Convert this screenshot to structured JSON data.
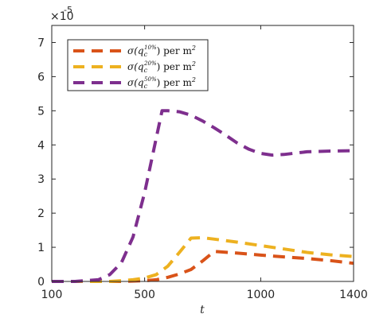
{
  "chart_data": {
    "type": "line",
    "title": "",
    "xlabel": "t",
    "ylabel": "",
    "xlim": [
      100,
      1400
    ],
    "ylim": [
      0,
      7.5
    ],
    "y_multiplier_label": "×10",
    "y_multiplier_exponent": "-5",
    "xticks": [
      100,
      500,
      1000,
      1400
    ],
    "yticks": [
      0,
      1,
      2,
      3,
      4,
      5,
      6,
      7
    ],
    "grid": false,
    "legend_position": "top-left",
    "series": [
      {
        "name": "σ(q_c^{10%}) per m²",
        "name_main": "σ(q",
        "name_sub": "c",
        "name_sup": "10%",
        "name_tail": ") per m",
        "name_pow": "2",
        "color": "#D95319",
        "x": [
          100,
          200,
          300,
          400,
          500,
          550,
          600,
          650,
          700,
          750,
          800,
          900,
          1000,
          1100,
          1200,
          1300,
          1400
        ],
        "y": [
          0,
          0,
          0,
          0,
          0.02,
          0.05,
          0.12,
          0.22,
          0.35,
          0.6,
          0.88,
          0.83,
          0.77,
          0.72,
          0.67,
          0.61,
          0.53
        ]
      },
      {
        "name": "σ(q_c^{20%}) per m²",
        "name_main": "σ(q",
        "name_sub": "c",
        "name_sup": "20%",
        "name_tail": ") per m",
        "name_pow": "2",
        "color": "#EDB120",
        "x": [
          100,
          200,
          300,
          350,
          400,
          450,
          500,
          550,
          600,
          650,
          700,
          750,
          800,
          900,
          1000,
          1100,
          1200,
          1300,
          1400
        ],
        "y": [
          0,
          0,
          0,
          0,
          0.02,
          0.05,
          0.1,
          0.2,
          0.45,
          0.85,
          1.27,
          1.28,
          1.24,
          1.15,
          1.05,
          0.95,
          0.85,
          0.78,
          0.73
        ]
      },
      {
        "name": "σ(q_c^{50%}) per m²",
        "name_main": "σ(q",
        "name_sub": "c",
        "name_sup": "50%",
        "name_tail": ") per m",
        "name_pow": "2",
        "color": "#7E2F8E",
        "x": [
          100,
          200,
          300,
          350,
          400,
          450,
          500,
          550,
          575,
          600,
          650,
          700,
          750,
          800,
          850,
          900,
          950,
          1000,
          1050,
          1100,
          1150,
          1200,
          1300,
          1400
        ],
        "y": [
          0,
          0,
          0.05,
          0.2,
          0.55,
          1.3,
          2.6,
          4.2,
          5.0,
          5.0,
          4.97,
          4.87,
          4.7,
          4.5,
          4.28,
          4.05,
          3.87,
          3.75,
          3.7,
          3.72,
          3.76,
          3.8,
          3.82,
          3.83
        ]
      }
    ]
  }
}
